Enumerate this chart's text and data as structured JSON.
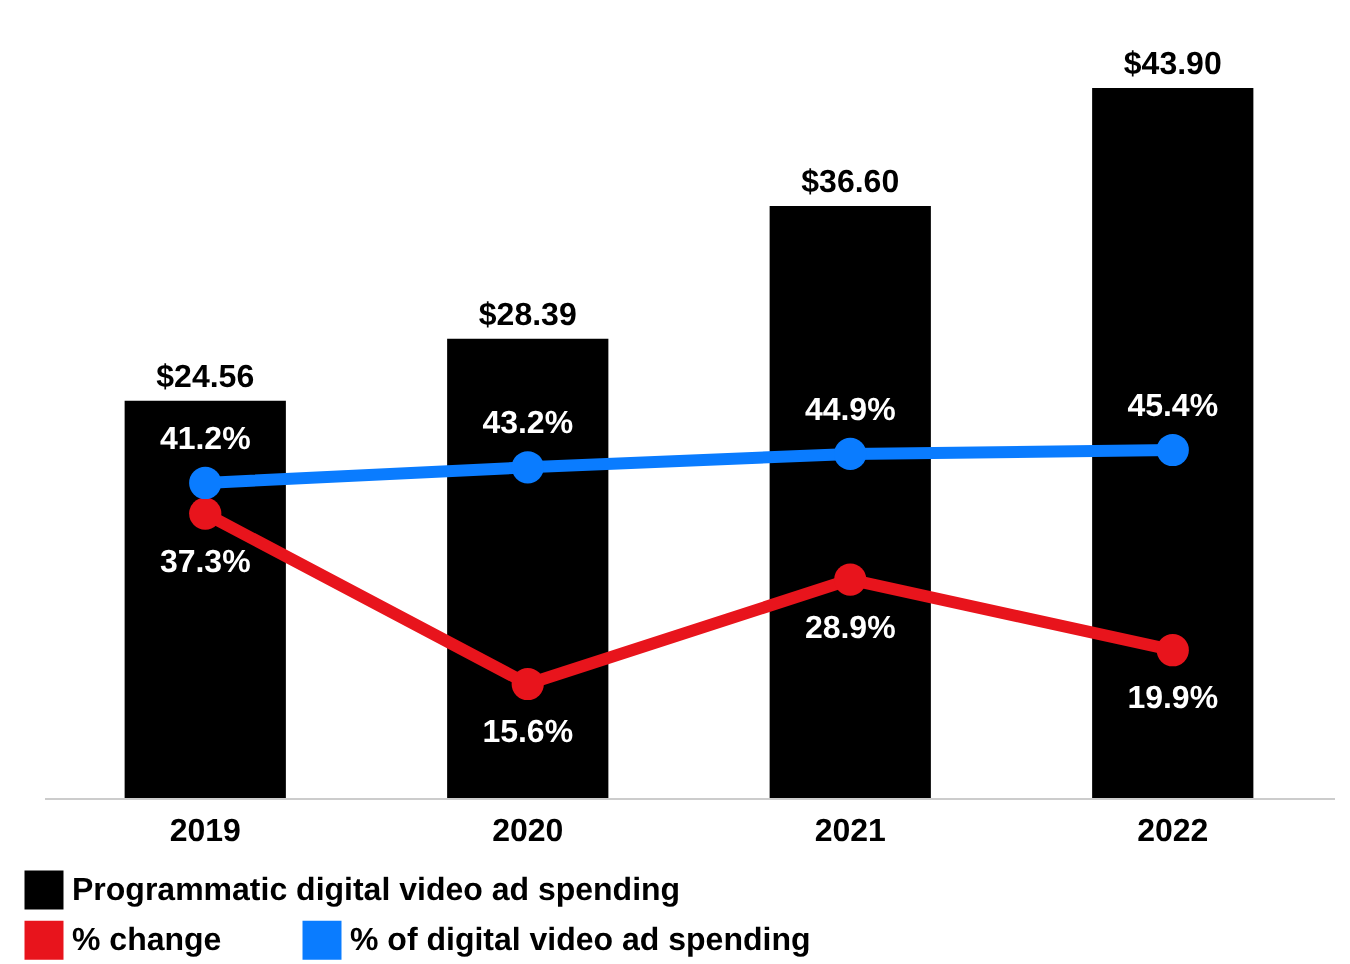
{
  "chart_data": {
    "type": "bar",
    "categories": [
      "2019",
      "2020",
      "2021",
      "2022"
    ],
    "legend": "bottom",
    "marker": "circle",
    "data_labels": true,
    "series": [
      {
        "name": "Programmatic digital video ad spending",
        "color": "#000000",
        "values": [
          24.56,
          28.39,
          36.6,
          43.9
        ],
        "value_labels": [
          "$24.56",
          "$28.39",
          "$36.60",
          "$43.90"
        ]
      },
      {
        "name": "% change",
        "type": "line",
        "axis": "y2",
        "color": "#e8141c",
        "values": [
          37.3,
          15.6,
          28.9,
          19.9
        ],
        "value_labels": [
          "37.3%",
          "15.6%",
          "28.9%",
          "19.9%"
        ]
      },
      {
        "name": "% of digital video ad spending",
        "type": "line",
        "axis": "y2",
        "color": "#0a7cff",
        "values": [
          41.2,
          43.2,
          44.9,
          45.4
        ],
        "value_labels": [
          "41.2%",
          "43.2%",
          "44.9%",
          "45.4%"
        ]
      }
    ]
  }
}
